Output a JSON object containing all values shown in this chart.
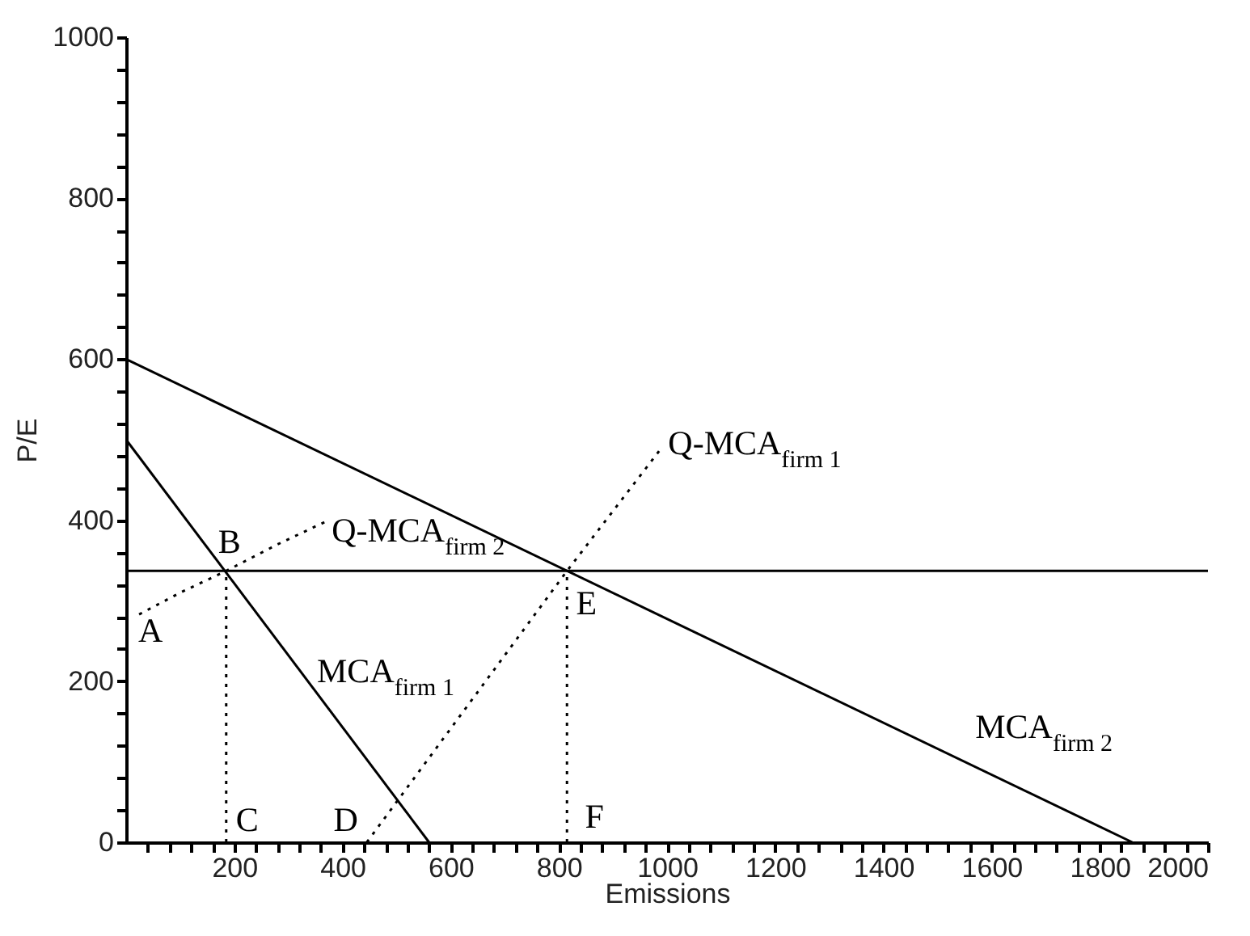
{
  "chart_data": {
    "type": "line",
    "xlabel": "Emissions",
    "ylabel": "P/E",
    "xlim": [
      0,
      2000
    ],
    "ylim": [
      0,
      1000
    ],
    "xticks": [
      {
        "value": 40,
        "label": null
      },
      {
        "value": 80,
        "label": null
      },
      {
        "value": 120,
        "label": null
      },
      {
        "value": 160,
        "label": null
      },
      200,
      {
        "value": 240,
        "label": null
      },
      {
        "value": 280,
        "label": null
      },
      {
        "value": 320,
        "label": null
      },
      {
        "value": 360,
        "label": null
      },
      400,
      {
        "value": 440,
        "label": null
      },
      {
        "value": 480,
        "label": null
      },
      {
        "value": 520,
        "label": null
      },
      {
        "value": 560,
        "label": null
      },
      600,
      {
        "value": 640,
        "label": null
      },
      {
        "value": 680,
        "label": null
      },
      {
        "value": 720,
        "label": null
      },
      {
        "value": 760,
        "label": null
      },
      800,
      {
        "value": 840,
        "label": null
      },
      {
        "value": 880,
        "label": null
      },
      {
        "value": 920,
        "label": null
      },
      {
        "value": 960,
        "label": null
      },
      1000,
      {
        "value": 1040,
        "label": null
      },
      {
        "value": 1080,
        "label": null
      },
      {
        "value": 1120,
        "label": null
      },
      {
        "value": 1160,
        "label": null
      },
      1200,
      {
        "value": 1240,
        "label": null
      },
      {
        "value": 1280,
        "label": null
      },
      {
        "value": 1320,
        "label": null
      },
      {
        "value": 1360,
        "label": null
      },
      1400,
      {
        "value": 1440,
        "label": null
      },
      {
        "value": 1480,
        "label": null
      },
      {
        "value": 1520,
        "label": null
      },
      {
        "value": 1560,
        "label": null
      },
      1600,
      {
        "value": 1640,
        "label": null
      },
      {
        "value": 1680,
        "label": null
      },
      {
        "value": 1720,
        "label": null
      },
      {
        "value": 1760,
        "label": null
      },
      1800,
      {
        "value": 1840,
        "label": null
      },
      {
        "value": 1880,
        "label": null
      },
      {
        "value": 1920,
        "label": null
      },
      {
        "value": 1960,
        "label": null
      },
      2000
    ],
    "yticks": [
      0,
      {
        "value": 40,
        "label": null
      },
      {
        "value": 80,
        "label": null
      },
      {
        "value": 120,
        "label": null
      },
      {
        "value": 160,
        "label": null
      },
      200,
      {
        "value": 240,
        "label": null
      },
      {
        "value": 280,
        "label": null
      },
      {
        "value": 320,
        "label": null
      },
      {
        "value": 360,
        "label": null
      },
      400,
      {
        "value": 440,
        "label": null
      },
      {
        "value": 480,
        "label": null
      },
      {
        "value": 520,
        "label": null
      },
      {
        "value": 560,
        "label": null
      },
      600,
      {
        "value": 640,
        "label": null
      },
      {
        "value": 680,
        "label": null
      },
      {
        "value": 720,
        "label": null
      },
      {
        "value": 760,
        "label": null
      },
      800,
      {
        "value": 840,
        "label": null
      },
      {
        "value": 880,
        "label": null
      },
      {
        "value": 920,
        "label": null
      },
      {
        "value": 960,
        "label": null
      },
      1000
    ],
    "series": [
      {
        "name": "MCA$_{firm 1}$",
        "color": "#000000",
        "line_style": "solid",
        "x": [
          0,
          560
        ],
        "values": [
          500,
          0
        ]
      },
      {
        "name": "MCA$_{firm 2}$",
        "color": "#000000",
        "line_style": "solid",
        "x": [
          0,
          1860
        ],
        "values": [
          600,
          0
        ]
      },
      {
        "name": "Q-MCA$_{firm 2}$",
        "color": "#000000",
        "line_style": "dotted",
        "x": [
          24,
          100,
          185,
          280,
          368
        ],
        "values": [
          283,
          310,
          337,
          370,
          398
        ]
      },
      {
        "name": "Q-MCA$_{firm 1}$",
        "color": "#000000",
        "line_style": "dotted",
        "x": [
          445,
          815,
          990
        ],
        "values": [
          0,
          337,
          490
        ]
      },
      {
        "color": "#000000",
        "line_style": "dotted",
        "x": [
          185,
          185
        ],
        "values": [
          0,
          337
        ]
      },
      {
        "color": "#000000",
        "line_style": "dotted",
        "x": [
          815,
          815
        ],
        "values": [
          0,
          337
        ]
      }
    ],
    "ref_lines": [
      {
        "axis": "y",
        "value": 337,
        "color": "#000000",
        "line_style": "solid"
      }
    ],
    "annotations": [
      {
        "text": "A",
        "x": 24,
        "y": 283
      },
      {
        "text": "B",
        "x": 185,
        "y": 337
      },
      {
        "text": "C",
        "x": 185,
        "y": 0
      },
      {
        "text": "D",
        "x": 445,
        "y": 0
      },
      {
        "text": "E",
        "x": 815,
        "y": 337
      },
      {
        "text": "F",
        "x": 815,
        "y": 0
      }
    ]
  }
}
